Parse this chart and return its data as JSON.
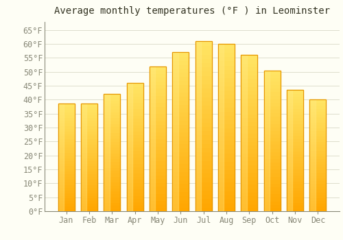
{
  "title": "Average monthly temperatures (°F ) in Leominster",
  "months": [
    "Jan",
    "Feb",
    "Mar",
    "Apr",
    "May",
    "Jun",
    "Jul",
    "Aug",
    "Sep",
    "Oct",
    "Nov",
    "Dec"
  ],
  "temperatures": [
    38.5,
    38.5,
    42,
    46,
    52,
    57,
    61,
    60,
    56,
    50.5,
    43.5,
    40
  ],
  "bar_color_top": "#FFD966",
  "bar_color_bottom": "#FFA500",
  "bar_edge_color": "#E69500",
  "background_color": "#FEFEF5",
  "grid_color": "#DDDDCC",
  "ylim": [
    0,
    68
  ],
  "yticks": [
    0,
    5,
    10,
    15,
    20,
    25,
    30,
    35,
    40,
    45,
    50,
    55,
    60,
    65
  ],
  "title_fontsize": 10,
  "tick_fontsize": 8.5
}
